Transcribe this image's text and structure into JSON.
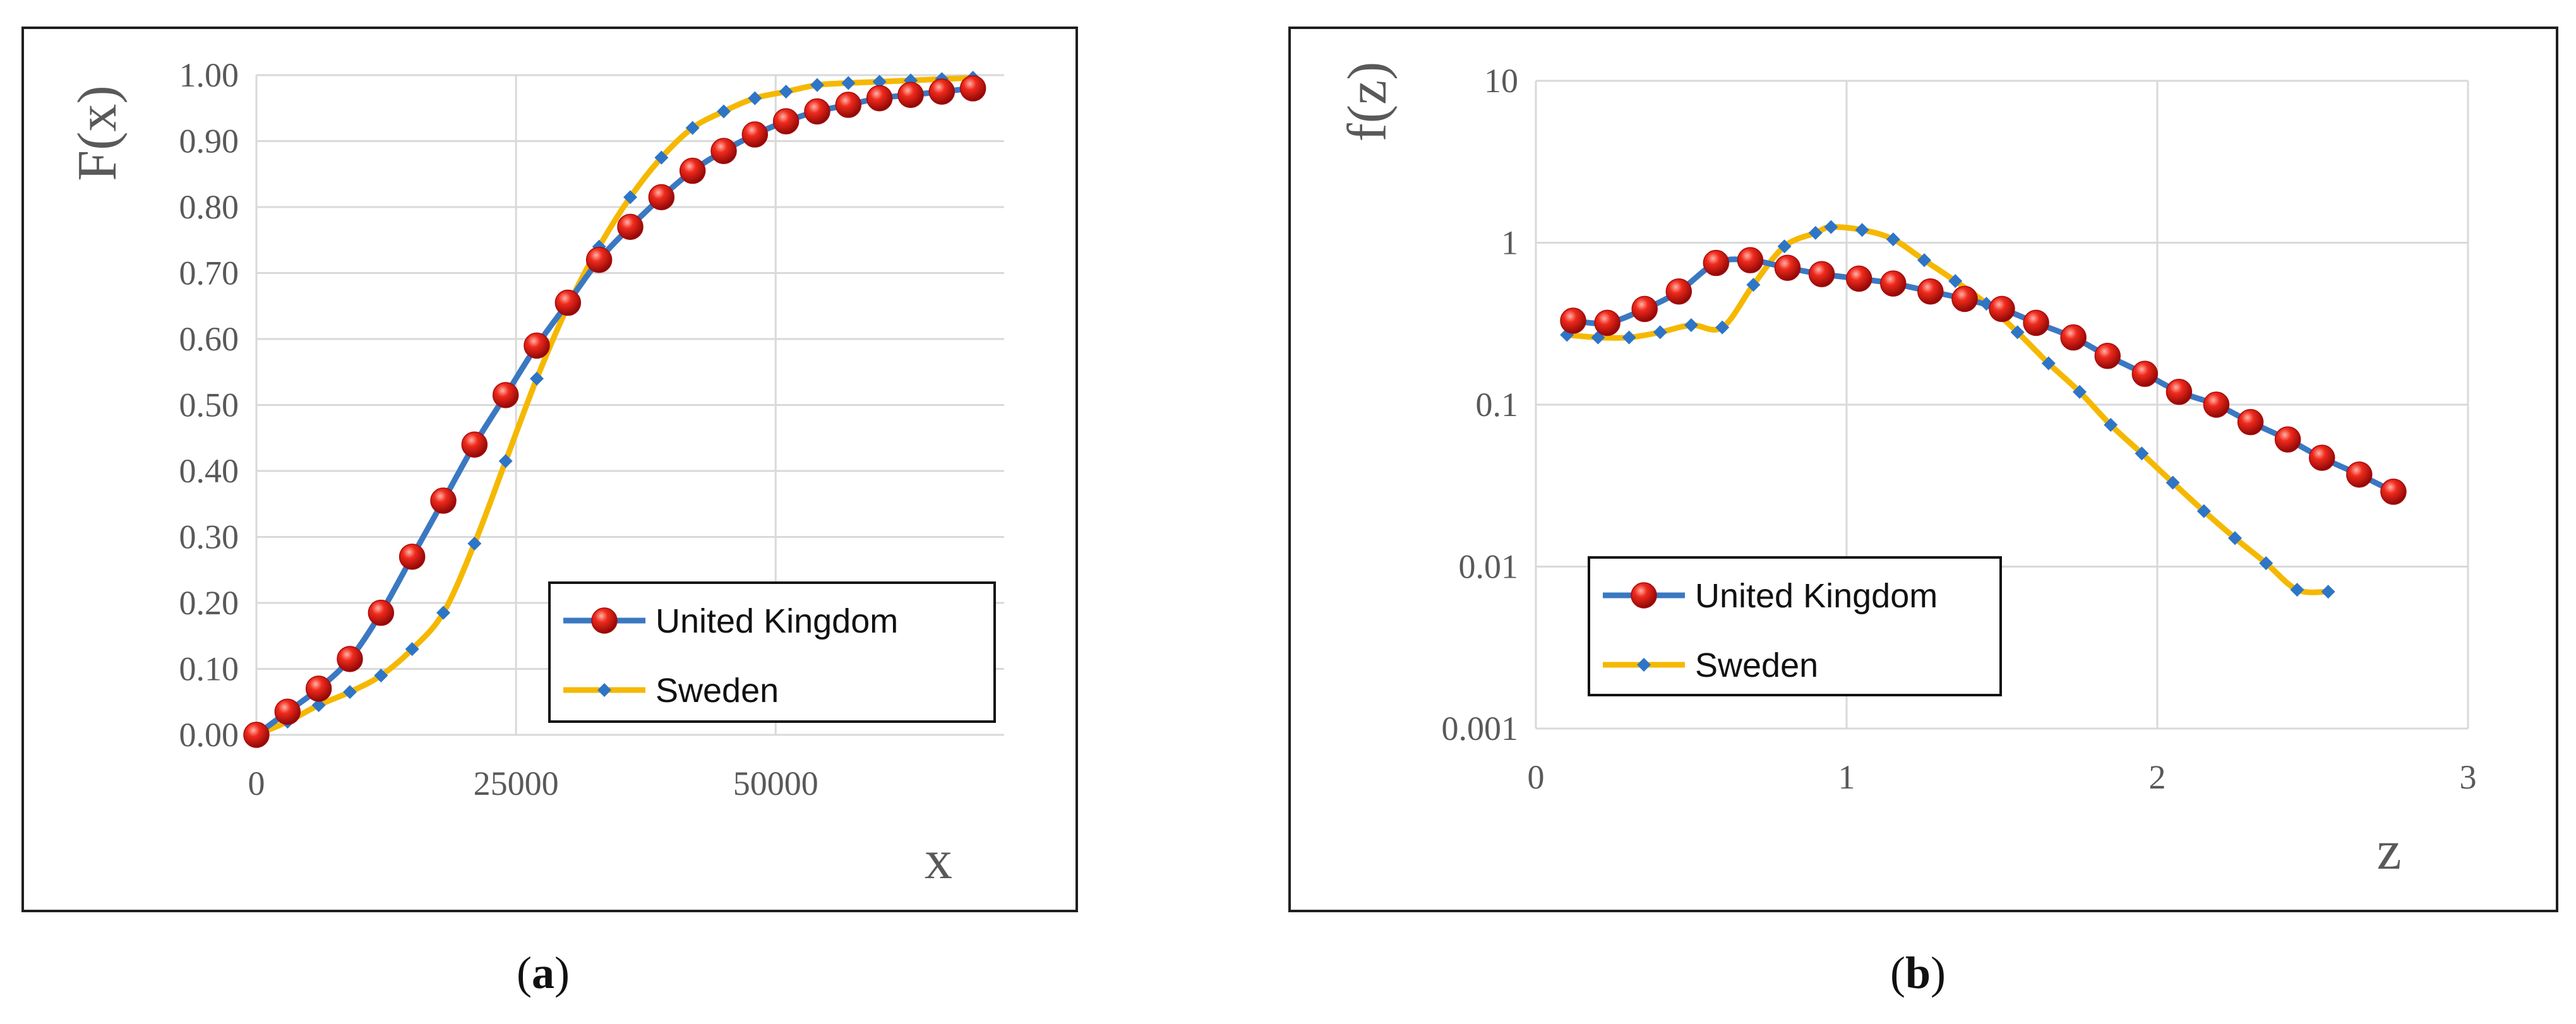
{
  "chart_data": [
    {
      "id": "a",
      "type": "line",
      "caption_letter": "a",
      "ylabel": "F(x)",
      "xlabel": "x",
      "x_scale": "linear",
      "y_scale": "linear",
      "xlim": [
        0,
        72000
      ],
      "ylim": [
        0,
        1
      ],
      "x_ticks": [
        0,
        25000,
        50000
      ],
      "x_tick_labels": [
        "0",
        "25000",
        "50000"
      ],
      "y_ticks": [
        0,
        0.1,
        0.2,
        0.3,
        0.4,
        0.5,
        0.6,
        0.7,
        0.8,
        0.9,
        1.0
      ],
      "y_tick_labels": [
        "0.00",
        "0.10",
        "0.20",
        "0.30",
        "0.40",
        "0.50",
        "0.60",
        "0.70",
        "0.80",
        "0.90",
        "1.00"
      ],
      "grid": true,
      "legend_position": "bottom-right",
      "series": [
        {
          "name": "United Kingdom",
          "line_color": "#3a78c2",
          "marker": "ball",
          "marker_color": "#d81010",
          "x": [
            0,
            3000,
            6000,
            9000,
            12000,
            15000,
            18000,
            21000,
            24000,
            27000,
            30000,
            33000,
            36000,
            39000,
            42000,
            45000,
            48000,
            51000,
            54000,
            57000,
            60000,
            63000,
            66000,
            69000
          ],
          "y": [
            0,
            0.035,
            0.07,
            0.115,
            0.185,
            0.27,
            0.355,
            0.44,
            0.515,
            0.59,
            0.655,
            0.72,
            0.77,
            0.815,
            0.855,
            0.885,
            0.91,
            0.93,
            0.945,
            0.955,
            0.965,
            0.97,
            0.975,
            0.98
          ]
        },
        {
          "name": "Sweden",
          "line_color": "#f5b800",
          "marker": "diamond",
          "marker_color": "#2e75c6",
          "x": [
            0,
            3000,
            6000,
            9000,
            12000,
            15000,
            18000,
            21000,
            24000,
            27000,
            30000,
            33000,
            36000,
            39000,
            42000,
            45000,
            48000,
            51000,
            54000,
            57000,
            60000,
            63000,
            66000,
            69000
          ],
          "y": [
            0,
            0.02,
            0.045,
            0.065,
            0.09,
            0.13,
            0.185,
            0.29,
            0.415,
            0.54,
            0.65,
            0.74,
            0.815,
            0.875,
            0.92,
            0.945,
            0.965,
            0.975,
            0.985,
            0.988,
            0.99,
            0.992,
            0.994,
            0.996
          ]
        }
      ]
    },
    {
      "id": "b",
      "type": "line",
      "caption_letter": "b",
      "ylabel": "f(z)",
      "xlabel": "z",
      "x_scale": "linear",
      "y_scale": "log",
      "xlim": [
        0,
        3
      ],
      "ylim": [
        0.001,
        10
      ],
      "x_ticks": [
        0,
        1,
        2,
        3
      ],
      "x_tick_labels": [
        "0",
        "1",
        "2",
        "3"
      ],
      "y_ticks": [
        0.001,
        0.01,
        0.1,
        1,
        10
      ],
      "y_tick_labels": [
        "0.001",
        "0.01",
        "0.1",
        "1",
        "10"
      ],
      "grid": true,
      "legend_position": "bottom-left",
      "series": [
        {
          "name": "United Kingdom",
          "line_color": "#3a78c2",
          "marker": "ball",
          "marker_color": "#d81010",
          "x": [
            0.12,
            0.23,
            0.35,
            0.46,
            0.58,
            0.69,
            0.81,
            0.92,
            1.04,
            1.15,
            1.27,
            1.38,
            1.5,
            1.61,
            1.73,
            1.84,
            1.96,
            2.07,
            2.19,
            2.3,
            2.42,
            2.53,
            2.65,
            2.76
          ],
          "y": [
            0.33,
            0.32,
            0.39,
            0.5,
            0.75,
            0.78,
            0.7,
            0.64,
            0.6,
            0.56,
            0.5,
            0.45,
            0.39,
            0.32,
            0.26,
            0.2,
            0.155,
            0.12,
            0.1,
            0.078,
            0.061,
            0.047,
            0.037,
            0.029
          ]
        },
        {
          "name": "Sweden",
          "line_color": "#f5b800",
          "marker": "diamond",
          "marker_color": "#2e75c6",
          "x": [
            0.1,
            0.2,
            0.3,
            0.4,
            0.5,
            0.6,
            0.7,
            0.8,
            0.9,
            0.95,
            1.05,
            1.15,
            1.25,
            1.35,
            1.45,
            1.55,
            1.65,
            1.75,
            1.85,
            1.95,
            2.05,
            2.15,
            2.25,
            2.35,
            2.45,
            2.55
          ],
          "y": [
            0.27,
            0.26,
            0.26,
            0.28,
            0.31,
            0.3,
            0.55,
            0.95,
            1.15,
            1.25,
            1.2,
            1.05,
            0.78,
            0.58,
            0.42,
            0.28,
            0.18,
            0.12,
            0.075,
            0.05,
            0.033,
            0.022,
            0.015,
            0.0105,
            0.0072,
            0.007
          ]
        }
      ]
    }
  ]
}
